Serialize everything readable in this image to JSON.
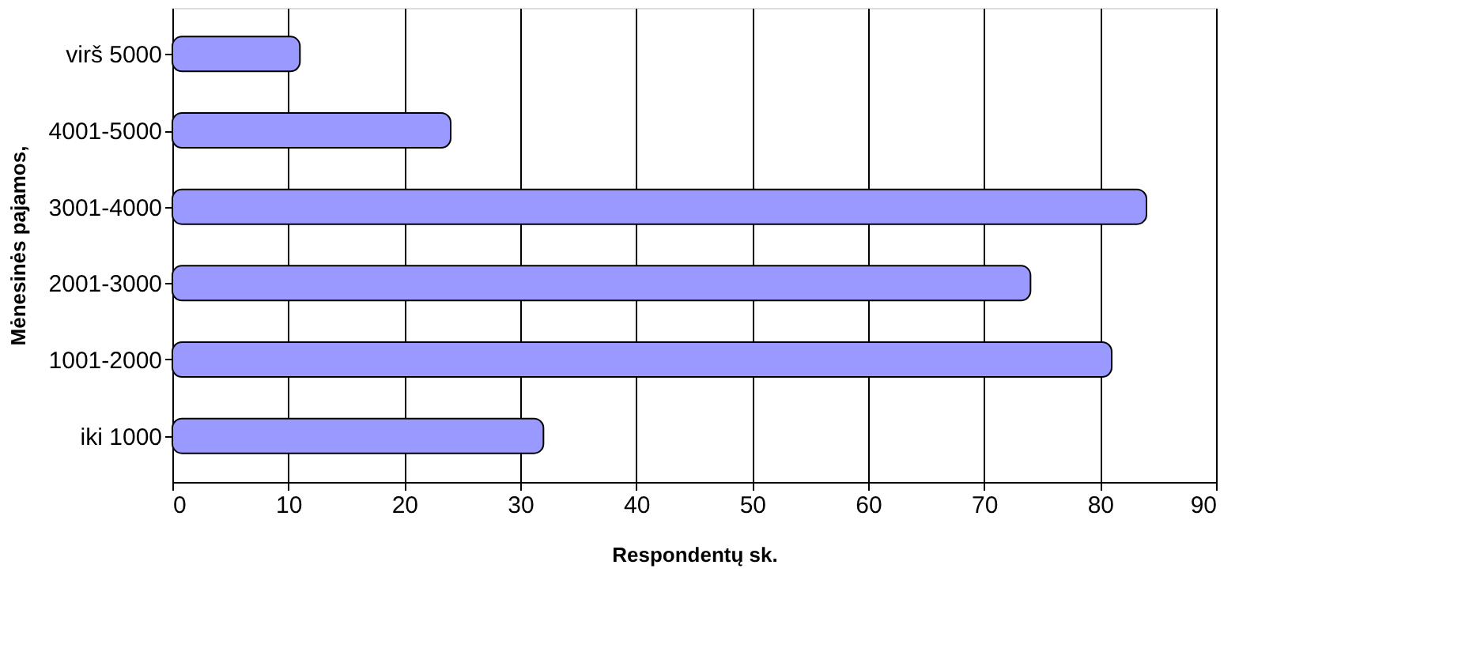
{
  "chart_data": {
    "type": "bar",
    "orientation": "horizontal",
    "categories": [
      "virš 5000",
      "4001-5000",
      "3001-4000",
      "2001-3000",
      "1001-2000",
      "iki 1000"
    ],
    "values": [
      11,
      24,
      84,
      74,
      81,
      32
    ],
    "color": "#9999ff",
    "xlim": [
      0,
      90
    ],
    "xticks": [
      0,
      10,
      20,
      30,
      40,
      50,
      60,
      70,
      80,
      90
    ],
    "xlabel": "Respondentų sk.",
    "ylabel": "Mėnesinės pajamos,",
    "grid": "x"
  }
}
